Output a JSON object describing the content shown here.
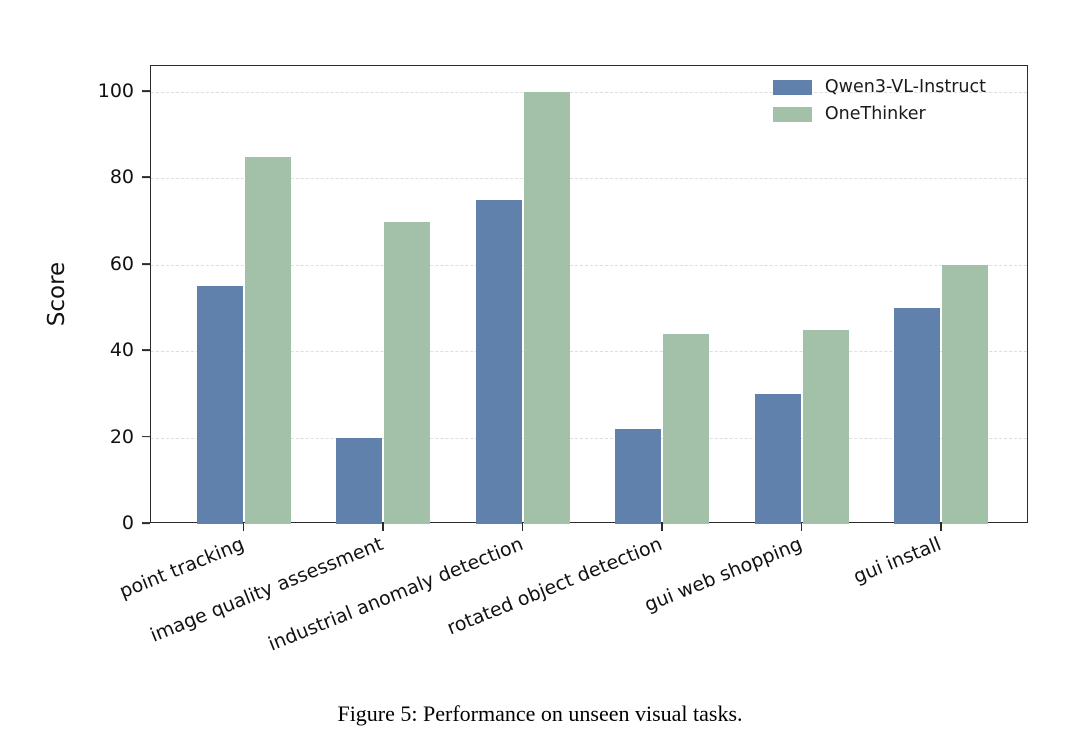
{
  "figure": {
    "caption": "Figure 5: Performance on unseen visual tasks."
  },
  "chart_data": {
    "type": "bar",
    "title": "",
    "xlabel": "",
    "ylabel": "Score",
    "ylim": [
      0,
      106
    ],
    "yticks": [
      0,
      20,
      40,
      60,
      80,
      100
    ],
    "grid": "horizontal-dashed",
    "legend_position": "upper-right-inside-frameless",
    "categories": [
      "point tracking",
      "image quality assessment",
      "industrial anomaly detection",
      "rotated object detection",
      "gui web shopping",
      "gui install"
    ],
    "series": [
      {
        "name": "Qwen3-VL-Instruct",
        "color": "#5f81ab",
        "values": [
          55,
          20,
          75,
          22,
          30,
          50
        ]
      },
      {
        "name": "OneThinker",
        "color": "#a3c1a8",
        "values": [
          85,
          70,
          100,
          44,
          45,
          60
        ]
      }
    ]
  }
}
